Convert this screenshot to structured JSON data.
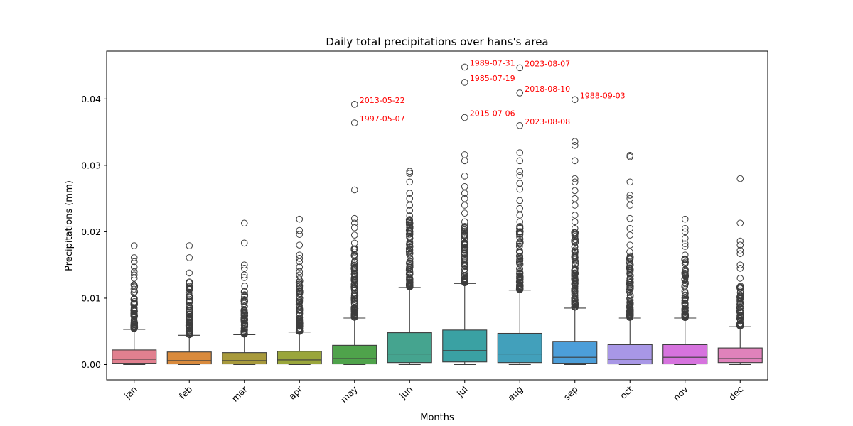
{
  "chart_data": {
    "type": "box",
    "title": "Daily total precipitations over hans's area",
    "xlabel": "Months",
    "ylabel": "Precipitations (mm)",
    "ylim": [
      -0.0023,
      0.0472
    ],
    "yticks": [
      {
        "value": 0.0,
        "label": "0.00"
      },
      {
        "value": 0.01,
        "label": "0.01"
      },
      {
        "value": 0.02,
        "label": "0.02"
      },
      {
        "value": 0.03,
        "label": "0.03"
      },
      {
        "value": 0.04,
        "label": "0.04"
      }
    ],
    "grid": false,
    "categories": [
      "jan",
      "feb",
      "mar",
      "apr",
      "may",
      "jun",
      "jul",
      "aug",
      "sep",
      "oct",
      "nov",
      "dec"
    ],
    "boxes": [
      {
        "color": "#e1808f",
        "whisker_low": 0.0,
        "q1": 0.0002,
        "median": 0.0008,
        "q3": 0.0022,
        "whisker_high": 0.0053,
        "outlier_range": [
          0.0054,
          0.0125
        ],
        "outliers": [
          0.013,
          0.0135,
          0.014,
          0.0147,
          0.0155,
          0.0161,
          0.0179
        ]
      },
      {
        "color": "#d98a3c",
        "whisker_low": 0.0,
        "q1": 0.0001,
        "median": 0.0006,
        "q3": 0.0019,
        "whisker_high": 0.0044,
        "outlier_range": [
          0.0045,
          0.0128
        ],
        "outliers": [
          0.0138,
          0.0161,
          0.0179
        ]
      },
      {
        "color": "#a89a3c",
        "whisker_low": 0.0,
        "q1": 0.0001,
        "median": 0.0006,
        "q3": 0.0018,
        "whisker_high": 0.0045,
        "outlier_range": [
          0.0046,
          0.0123
        ],
        "outliers": [
          0.0131,
          0.0135,
          0.0145,
          0.015,
          0.0183,
          0.0213
        ]
      },
      {
        "color": "#9aa63b",
        "whisker_low": 0.0,
        "q1": 0.0001,
        "median": 0.0007,
        "q3": 0.002,
        "whisker_high": 0.0049,
        "outlier_range": [
          0.005,
          0.013
        ],
        "outliers": [
          0.0135,
          0.014,
          0.0147,
          0.0155,
          0.016,
          0.0165,
          0.018,
          0.0196,
          0.0202,
          0.0219
        ]
      },
      {
        "color": "#4fa34b",
        "whisker_low": 0.0,
        "q1": 0.0001,
        "median": 0.0009,
        "q3": 0.0029,
        "whisker_high": 0.007,
        "outlier_range": [
          0.0071,
          0.0178
        ],
        "outliers": [
          0.0183,
          0.0195,
          0.0206,
          0.0213,
          0.022,
          0.0263,
          0.0364,
          0.0392
        ]
      },
      {
        "color": "#45a48f",
        "whisker_low": 0.0,
        "q1": 0.0003,
        "median": 0.0016,
        "q3": 0.0048,
        "whisker_high": 0.0116,
        "outlier_range": [
          0.0117,
          0.022
        ],
        "outliers": [
          0.0224,
          0.0232,
          0.024,
          0.025,
          0.0258,
          0.0275,
          0.0288,
          0.0291
        ]
      },
      {
        "color": "#3aa1a3",
        "whisker_low": 0.0,
        "q1": 0.0004,
        "median": 0.0021,
        "q3": 0.0052,
        "whisker_high": 0.0122,
        "outlier_range": [
          0.0123,
          0.021
        ],
        "outliers": [
          0.0215,
          0.0228,
          0.024,
          0.025,
          0.0258,
          0.0268,
          0.0284,
          0.0307,
          0.0316,
          0.0372,
          0.0425,
          0.0448
        ]
      },
      {
        "color": "#42a0bb",
        "whisker_low": 0.0,
        "q1": 0.0003,
        "median": 0.0016,
        "q3": 0.0047,
        "whisker_high": 0.0112,
        "outlier_range": [
          0.0113,
          0.021
        ],
        "outliers": [
          0.0215,
          0.0225,
          0.0235,
          0.0247,
          0.0264,
          0.0273,
          0.0285,
          0.0291,
          0.0307,
          0.0319,
          0.036,
          0.0409,
          0.0447
        ]
      },
      {
        "color": "#4c9ed9",
        "whisker_low": 0.0,
        "q1": 0.0002,
        "median": 0.0011,
        "q3": 0.0035,
        "whisker_high": 0.0085,
        "outlier_range": [
          0.0086,
          0.02
        ],
        "outliers": [
          0.0205,
          0.0215,
          0.0225,
          0.024,
          0.025,
          0.0262,
          0.0275,
          0.028,
          0.0307,
          0.033,
          0.0336,
          0.0399
        ]
      },
      {
        "color": "#a897e6",
        "whisker_low": 0.0,
        "q1": 0.0001,
        "median": 0.0008,
        "q3": 0.003,
        "whisker_high": 0.007,
        "outlier_range": [
          0.0071,
          0.017
        ],
        "outliers": [
          0.018,
          0.0195,
          0.0205,
          0.022,
          0.024,
          0.025,
          0.0255,
          0.0275,
          0.0313,
          0.0315
        ]
      },
      {
        "color": "#d673de",
        "whisker_low": 0.0,
        "q1": 0.0001,
        "median": 0.0011,
        "q3": 0.003,
        "whisker_high": 0.007,
        "outlier_range": [
          0.0071,
          0.016
        ],
        "outliers": [
          0.0165,
          0.0178,
          0.0182,
          0.019,
          0.02,
          0.0205,
          0.0219
        ]
      },
      {
        "color": "#e082bb",
        "whisker_low": 0.0,
        "q1": 0.0003,
        "median": 0.0009,
        "q3": 0.0025,
        "whisker_high": 0.0057,
        "outlier_range": [
          0.0058,
          0.012
        ],
        "outliers": [
          0.013,
          0.0145,
          0.015,
          0.0167,
          0.0172,
          0.018,
          0.0186,
          0.0213,
          0.028
        ]
      }
    ],
    "annotations": [
      {
        "text": "2013-05-22",
        "category": "may",
        "value": 0.0392
      },
      {
        "text": "1997-05-07",
        "category": "may",
        "value": 0.0364
      },
      {
        "text": "1989-07-31",
        "category": "jul",
        "value": 0.0448
      },
      {
        "text": "1985-07-19",
        "category": "jul",
        "value": 0.0425
      },
      {
        "text": "2015-07-06",
        "category": "jul",
        "value": 0.0372
      },
      {
        "text": "2023-08-07",
        "category": "aug",
        "value": 0.0447
      },
      {
        "text": "2018-08-10",
        "category": "aug",
        "value": 0.0409
      },
      {
        "text": "2023-08-08",
        "category": "aug",
        "value": 0.036
      },
      {
        "text": "1988-09-03",
        "category": "sep",
        "value": 0.0399
      }
    ]
  }
}
